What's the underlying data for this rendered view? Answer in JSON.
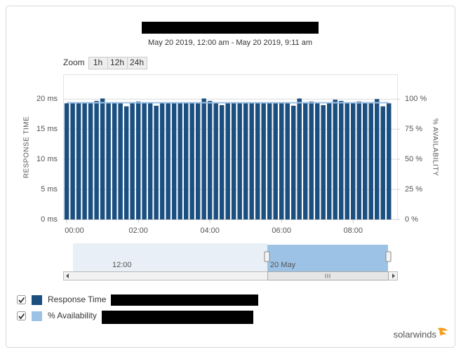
{
  "header": {
    "subtitle": "May 20 2019, 12:00 am - May 20 2019, 9:11 am"
  },
  "zoom": {
    "label": "Zoom",
    "buttons": [
      "1h",
      "12h",
      "24h"
    ]
  },
  "chart_data": {
    "type": "bar",
    "y_label": "RESPONSE TIME",
    "y2_label": "% AVAILABILITY",
    "x": [
      0,
      10,
      20,
      30,
      40,
      50,
      60,
      70,
      80,
      90,
      100,
      110,
      120,
      130,
      140,
      150,
      160,
      170,
      180,
      190,
      200,
      210,
      220,
      230,
      240,
      250,
      260,
      270,
      280,
      290,
      300,
      310,
      320,
      330,
      340,
      350,
      360,
      370,
      380,
      390,
      400,
      410,
      420,
      430,
      440,
      450,
      460,
      470,
      480,
      490,
      500,
      510,
      520,
      530,
      540
    ],
    "xlim": [
      -6,
      555
    ],
    "xticks": [
      {
        "value": 0,
        "label": "00:00"
      },
      {
        "value": 120,
        "label": "02:00"
      },
      {
        "value": 240,
        "label": "04:00"
      },
      {
        "value": 360,
        "label": "06:00"
      },
      {
        "value": 480,
        "label": "08:00"
      }
    ],
    "ylim": [
      0,
      24
    ],
    "yticks": [
      {
        "value": 0,
        "label": "0 ms"
      },
      {
        "value": 5,
        "label": "5 ms"
      },
      {
        "value": 10,
        "label": "10 ms"
      },
      {
        "value": 15,
        "label": "15 ms"
      },
      {
        "value": 20,
        "label": "20 ms"
      }
    ],
    "y2lim": [
      0,
      120
    ],
    "y2ticks": [
      {
        "value": 0,
        "label": "0 %"
      },
      {
        "value": 25,
        "label": "25 %"
      },
      {
        "value": 50,
        "label": "50 %"
      },
      {
        "value": 75,
        "label": "75 %"
      },
      {
        "value": 100,
        "label": "100 %"
      }
    ],
    "grid": true,
    "series": [
      {
        "name": "Response Time",
        "color": "#1b4f80",
        "values": [
          19.3,
          19.3,
          19.3,
          19.3,
          19.3,
          19.7,
          20.1,
          19.3,
          19.3,
          19.3,
          18.8,
          19.3,
          19.6,
          19.3,
          19.3,
          18.9,
          19.3,
          19.3,
          19.3,
          19.3,
          19.3,
          19.3,
          19.3,
          20.1,
          19.7,
          19.3,
          19.0,
          19.3,
          19.3,
          19.3,
          19.3,
          19.3,
          19.3,
          19.3,
          19.3,
          19.3,
          19.3,
          19.3,
          18.9,
          20.1,
          19.3,
          19.6,
          19.3,
          19.0,
          19.3,
          19.9,
          19.7,
          19.3,
          19.4,
          19.6,
          19.3,
          19.3,
          20.0,
          18.8,
          19.3
        ]
      },
      {
        "name": "% Availability",
        "color": "#9cc3e6",
        "axis": "y2",
        "type": "line",
        "values": [
          97,
          97,
          97,
          97,
          97,
          97,
          97,
          97,
          97,
          97,
          97,
          97,
          97,
          97,
          97,
          97,
          97,
          97,
          97,
          97,
          97,
          97,
          97,
          97,
          97,
          97,
          97,
          97,
          97,
          97,
          97,
          97,
          97,
          97,
          97,
          97,
          97,
          97,
          97,
          97,
          97,
          97,
          97,
          97,
          97,
          97,
          97,
          97,
          97,
          97,
          97,
          97,
          97,
          97,
          97
        ]
      }
    ]
  },
  "navigator": {
    "labels": [
      "12:00",
      "20 May"
    ]
  },
  "footer": {
    "logo": "solarwinds"
  }
}
